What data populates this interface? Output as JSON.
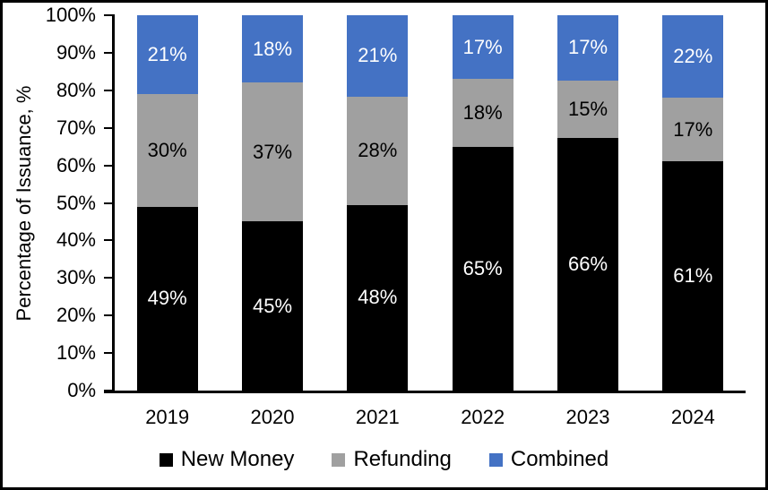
{
  "chart_data": {
    "type": "bar",
    "stacked": true,
    "categories": [
      "2019",
      "2020",
      "2021",
      "2022",
      "2023",
      "2024"
    ],
    "series": [
      {
        "name": "New Money",
        "color": "#000000",
        "label_color": "#ffffff",
        "values": [
          49,
          45,
          48,
          65,
          66,
          61
        ],
        "labels": [
          "49%",
          "45%",
          "48%",
          "65%",
          "66%",
          "61%"
        ]
      },
      {
        "name": "Refunding",
        "color": "#A0A0A0",
        "label_color": "#000000",
        "values": [
          30,
          37,
          28,
          18,
          15,
          17
        ],
        "labels": [
          "30%",
          "37%",
          "28%",
          "18%",
          "15%",
          "17%"
        ]
      },
      {
        "name": "Combined",
        "color": "#4472C4",
        "label_color": "#ffffff",
        "values": [
          21,
          18,
          21,
          17,
          17,
          22
        ],
        "labels": [
          "21%",
          "18%",
          "21%",
          "17%",
          "17%",
          "22%"
        ]
      }
    ],
    "title": "",
    "xlabel": "",
    "ylabel": "Percentage of Issuance, %",
    "ylim": [
      0,
      100
    ],
    "yticks": [
      "0%",
      "10%",
      "20%",
      "30%",
      "40%",
      "50%",
      "60%",
      "70%",
      "80%",
      "90%",
      "100%"
    ],
    "grid": false,
    "legend_position": "bottom",
    "axis_color": "#000000",
    "background_color": "#ffffff"
  }
}
